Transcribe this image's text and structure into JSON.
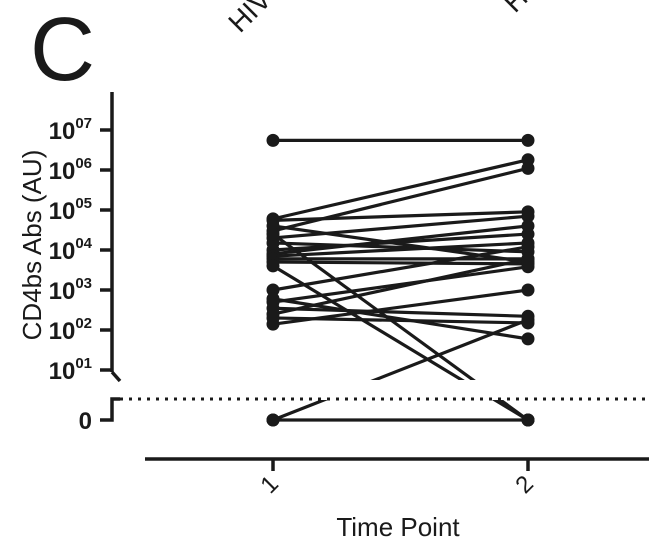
{
  "panel_label": "C",
  "chart_data": {
    "type": "line",
    "title": "",
    "top_labels": [
      "HIV",
      "H"
    ],
    "xlabel": "Time Point",
    "ylabel": "CD4bs Abs (AU)",
    "y_scale": "log",
    "categories": [
      "1",
      "2"
    ],
    "y_ticks": [
      {
        "base": "10",
        "exp": "01",
        "value": 10
      },
      {
        "base": "10",
        "exp": "02",
        "value": 100
      },
      {
        "base": "10",
        "exp": "03",
        "value": 1000
      },
      {
        "base": "10",
        "exp": "04",
        "value": 10000
      },
      {
        "base": "10",
        "exp": "05",
        "value": 100000
      },
      {
        "base": "10",
        "exp": "06",
        "value": 1000000
      },
      {
        "base": "10",
        "exp": "07",
        "value": 10000000
      }
    ],
    "zero_tick_label": "0",
    "ylim": [
      10,
      10000000
    ],
    "grid": false,
    "legend": "none",
    "dotted_line_at_axis_break": true,
    "series": [
      {
        "values": [
          5500000,
          5500000
        ]
      },
      {
        "values": [
          60000,
          1800000
        ]
      },
      {
        "values": [
          30000,
          1100000
        ]
      },
      {
        "values": [
          55000,
          90000
        ]
      },
      {
        "values": [
          20000,
          70000
        ]
      },
      {
        "values": [
          8000,
          40000
        ]
      },
      {
        "values": [
          10000,
          25000
        ]
      },
      {
        "values": [
          7000,
          15000
        ]
      },
      {
        "values": [
          15000,
          9000
        ]
      },
      {
        "values": [
          6000,
          6000
        ]
      },
      {
        "values": [
          5000,
          4500
        ]
      },
      {
        "values": [
          1000,
          12000
        ]
      },
      {
        "values": [
          500,
          3800
        ]
      },
      {
        "values": [
          250,
          6000
        ]
      },
      {
        "values": [
          140,
          1000
        ]
      },
      {
        "values": [
          40000,
          5000
        ]
      },
      {
        "values": [
          350,
          220
        ]
      },
      {
        "values": [
          200,
          150
        ]
      },
      {
        "values": [
          600,
          60
        ]
      },
      {
        "values": [
          25000,
          0
        ]
      },
      {
        "values": [
          4000,
          0
        ]
      },
      {
        "values": [
          0,
          180
        ]
      },
      {
        "values": [
          0,
          0
        ]
      }
    ]
  }
}
